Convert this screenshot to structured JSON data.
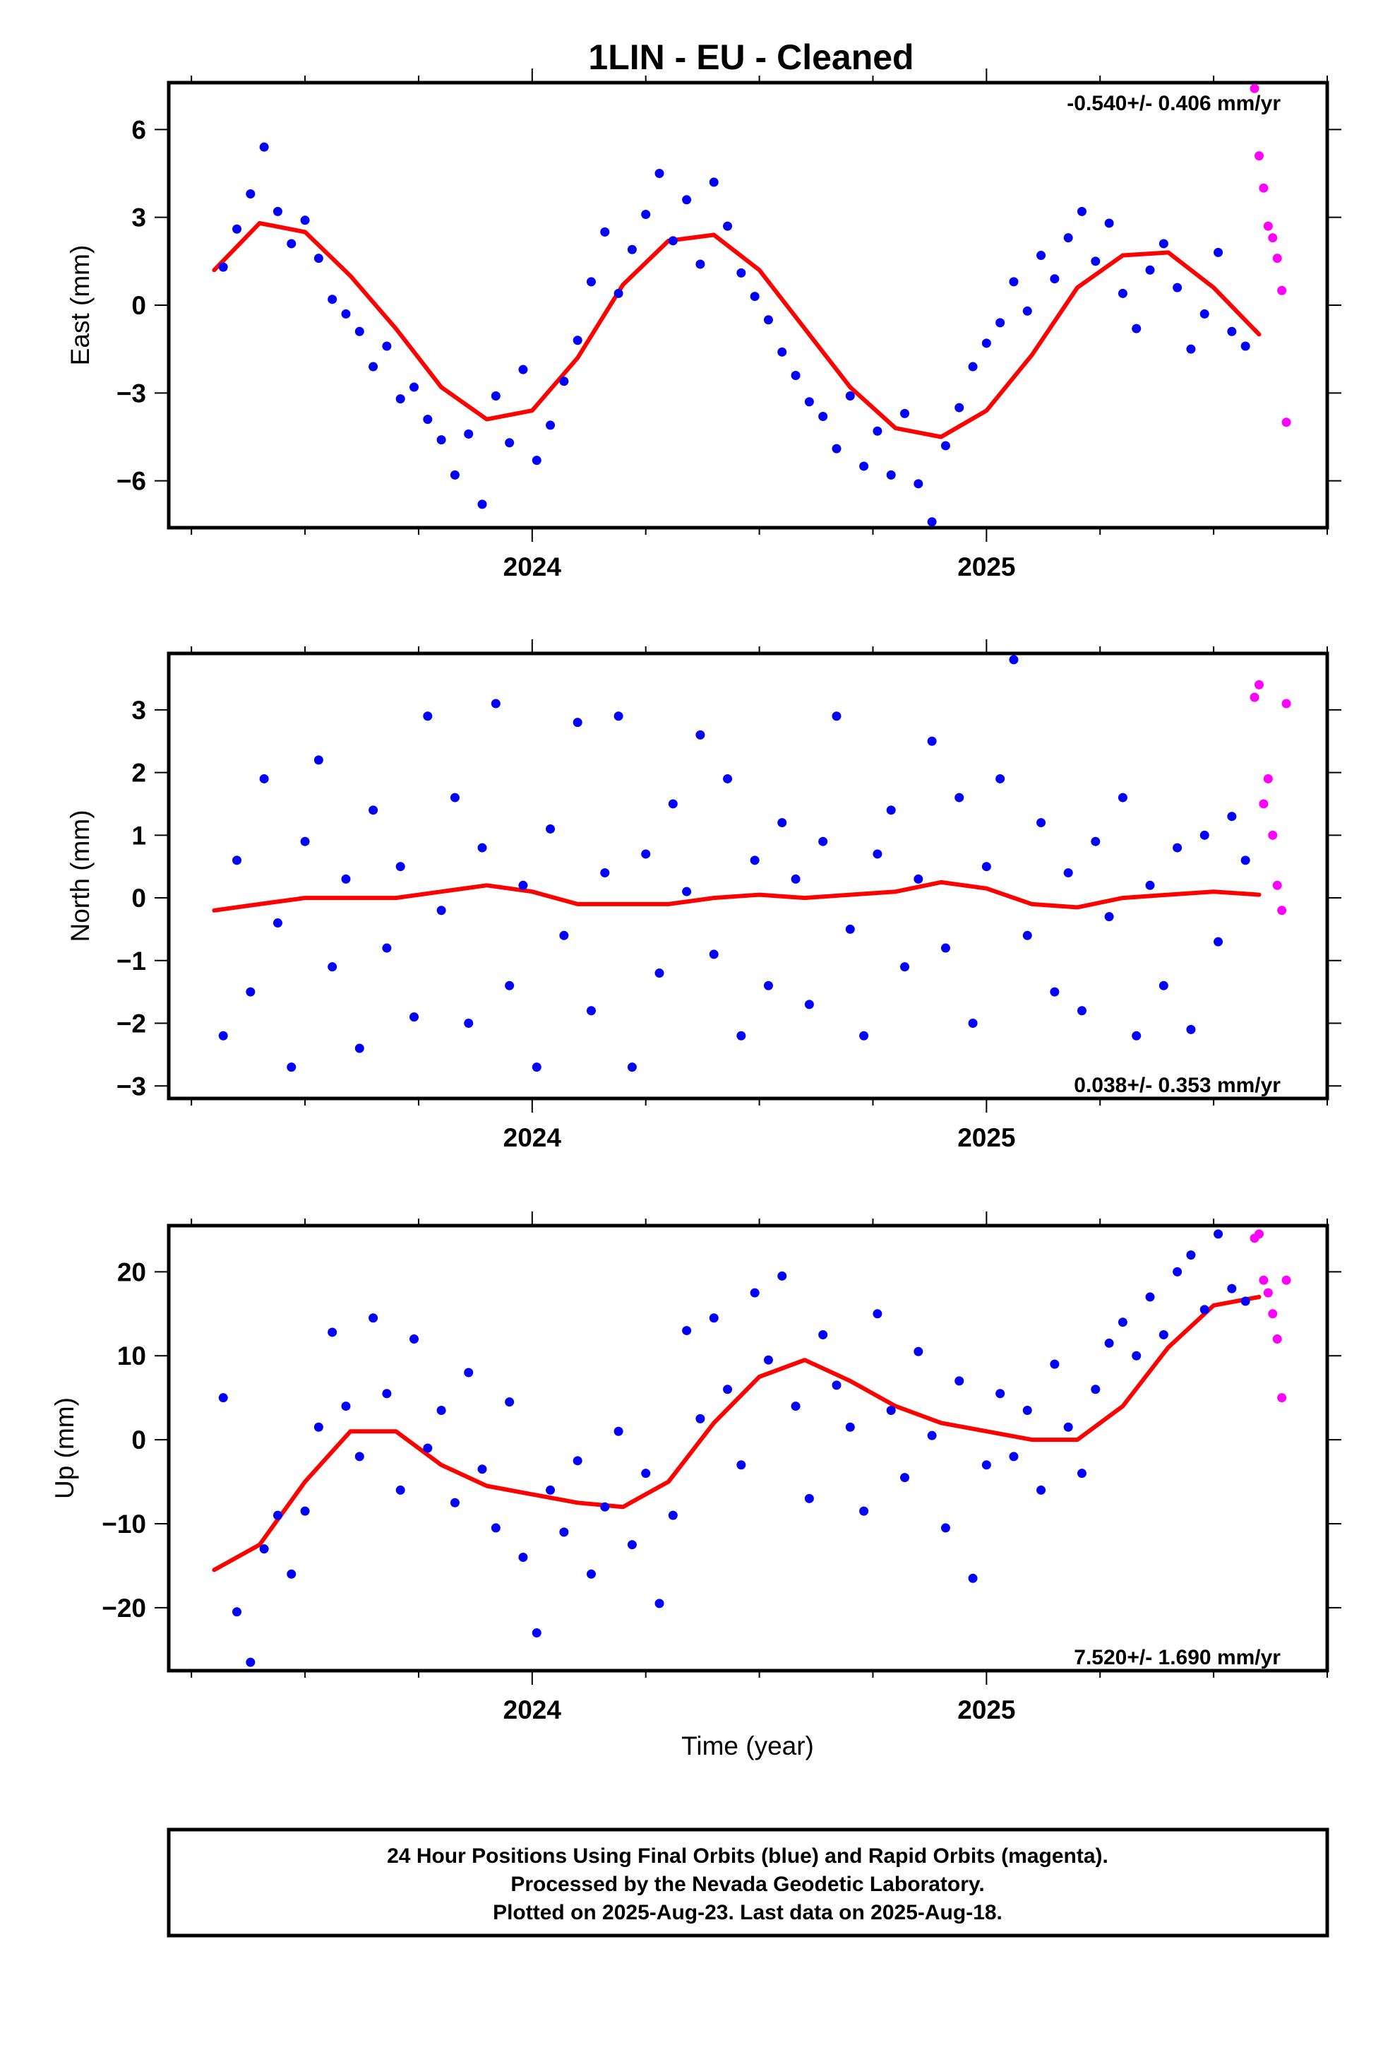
{
  "title": "1LIN  - EU - Cleaned",
  "x_axis_label": "Time (year)",
  "footer": {
    "line1": "24 Hour Positions Using Final Orbits (blue) and Rapid Orbits (magenta).",
    "line2": "Processed by the Nevada Geodetic Laboratory.",
    "line3": "Plotted on 2025-Aug-23. Last data on 2025-Aug-18."
  },
  "colors": {
    "final_orbits": "#0000ff",
    "rapid_orbits": "#ff00ff",
    "model_fit": "#ff0000"
  },
  "chart_data": [
    {
      "type": "scatter",
      "component": "east",
      "ylabel": "East (mm)",
      "rate_label": "-0.540+/- 0.406 mm/yr",
      "xlim": [
        2023.2,
        2025.75
      ],
      "ylim": [
        -7.6,
        7.6
      ],
      "xticks": [
        2024,
        2025
      ],
      "yticks": [
        6,
        3,
        0,
        -3,
        -6
      ],
      "ytick_labels": [
        "6",
        "3",
        "0",
        "−3",
        "−6"
      ],
      "fit": {
        "x": [
          2023.3,
          2023.4,
          2023.5,
          2023.6,
          2023.7,
          2023.8,
          2023.9,
          2024.0,
          2024.1,
          2024.2,
          2024.3,
          2024.4,
          2024.5,
          2024.6,
          2024.7,
          2024.8,
          2024.9,
          2025.0,
          2025.1,
          2025.2,
          2025.3,
          2025.4,
          2025.5,
          2025.6
        ],
        "y": [
          1.2,
          2.8,
          2.5,
          1.0,
          -0.8,
          -2.8,
          -3.9,
          -3.6,
          -1.8,
          0.7,
          2.2,
          2.4,
          1.2,
          -0.8,
          -2.8,
          -4.2,
          -4.5,
          -3.6,
          -1.7,
          0.6,
          1.7,
          1.8,
          0.6,
          -1.0
        ]
      },
      "series": [
        {
          "color": "#0000ff",
          "x": [
            2023.32,
            2023.35,
            2023.38,
            2023.41,
            2023.44,
            2023.47,
            2023.5,
            2023.53,
            2023.56,
            2023.59,
            2023.62,
            2023.65,
            2023.68,
            2023.71,
            2023.74,
            2023.77,
            2023.8,
            2023.83,
            2023.86,
            2023.89,
            2023.92,
            2023.95,
            2023.98,
            2024.01,
            2024.04,
            2024.07,
            2024.1,
            2024.13,
            2024.16,
            2024.19,
            2024.22,
            2024.25,
            2024.28,
            2024.31,
            2024.34,
            2024.37,
            2024.4,
            2024.43,
            2024.46,
            2024.49,
            2024.52,
            2024.55,
            2024.58,
            2024.61,
            2024.64,
            2024.67,
            2024.7,
            2024.73,
            2024.76,
            2024.79,
            2024.82,
            2024.85,
            2024.88,
            2024.91,
            2024.94,
            2024.97,
            2025.0,
            2025.03,
            2025.06,
            2025.09,
            2025.12,
            2025.15,
            2025.18,
            2025.21,
            2025.24,
            2025.27,
            2025.3,
            2025.33,
            2025.36,
            2025.39,
            2025.42,
            2025.45,
            2025.48,
            2025.51,
            2025.54,
            2025.57
          ],
          "y": [
            1.3,
            2.6,
            3.8,
            5.4,
            3.2,
            2.1,
            2.9,
            1.6,
            0.2,
            -0.3,
            -0.9,
            -2.1,
            -1.4,
            -3.2,
            -2.8,
            -3.9,
            -4.6,
            -5.8,
            -4.4,
            -6.8,
            -3.1,
            -4.7,
            -2.2,
            -5.3,
            -4.1,
            -2.6,
            -1.2,
            0.8,
            2.5,
            0.4,
            1.9,
            3.1,
            4.5,
            2.2,
            3.6,
            1.4,
            4.2,
            2.7,
            1.1,
            0.3,
            -0.5,
            -1.6,
            -2.4,
            -3.3,
            -3.8,
            -4.9,
            -3.1,
            -5.5,
            -4.3,
            -5.8,
            -3.7,
            -6.1,
            -7.4,
            -4.8,
            -3.5,
            -2.1,
            -1.3,
            -0.6,
            0.8,
            -0.2,
            1.7,
            0.9,
            2.3,
            3.2,
            1.5,
            2.8,
            0.4,
            -0.8,
            1.2,
            2.1,
            0.6,
            -1.5,
            -0.3,
            1.8,
            -0.9,
            -1.4
          ]
        },
        {
          "color": "#ff00ff",
          "x": [
            2025.59,
            2025.6,
            2025.61,
            2025.62,
            2025.63,
            2025.64,
            2025.65,
            2025.66
          ],
          "y": [
            7.4,
            5.1,
            4.0,
            2.7,
            2.3,
            1.6,
            0.5,
            -4.0
          ]
        }
      ]
    },
    {
      "type": "scatter",
      "component": "north",
      "ylabel": "North (mm)",
      "rate_label": "0.038+/- 0.353 mm/yr",
      "xlim": [
        2023.2,
        2025.75
      ],
      "ylim": [
        -3.2,
        3.9
      ],
      "xticks": [
        2024,
        2025
      ],
      "yticks": [
        3,
        2,
        1,
        0,
        -1,
        -2,
        -3
      ],
      "ytick_labels": [
        "3",
        "2",
        "1",
        "0",
        "−1",
        "−2",
        "−3"
      ],
      "fit": {
        "x": [
          2023.3,
          2023.4,
          2023.5,
          2023.6,
          2023.7,
          2023.8,
          2023.9,
          2024.0,
          2024.1,
          2024.2,
          2024.3,
          2024.4,
          2024.5,
          2024.6,
          2024.7,
          2024.8,
          2024.9,
          2025.0,
          2025.1,
          2025.2,
          2025.3,
          2025.4,
          2025.5,
          2025.6
        ],
        "y": [
          -0.2,
          -0.1,
          0.0,
          0.0,
          0.0,
          0.1,
          0.2,
          0.1,
          -0.1,
          -0.1,
          -0.1,
          0.0,
          0.05,
          0.0,
          0.05,
          0.1,
          0.25,
          0.15,
          -0.1,
          -0.15,
          0.0,
          0.05,
          0.1,
          0.05
        ]
      },
      "series": [
        {
          "color": "#0000ff",
          "x": [
            2023.32,
            2023.35,
            2023.38,
            2023.41,
            2023.44,
            2023.47,
            2023.5,
            2023.53,
            2023.56,
            2023.59,
            2023.62,
            2023.65,
            2023.68,
            2023.71,
            2023.74,
            2023.77,
            2023.8,
            2023.83,
            2023.86,
            2023.89,
            2023.92,
            2023.95,
            2023.98,
            2024.01,
            2024.04,
            2024.07,
            2024.1,
            2024.13,
            2024.16,
            2024.19,
            2024.22,
            2024.25,
            2024.28,
            2024.31,
            2024.34,
            2024.37,
            2024.4,
            2024.43,
            2024.46,
            2024.49,
            2024.52,
            2024.55,
            2024.58,
            2024.61,
            2024.64,
            2024.67,
            2024.7,
            2024.73,
            2024.76,
            2024.79,
            2024.82,
            2024.85,
            2024.88,
            2024.91,
            2024.94,
            2024.97,
            2025.0,
            2025.03,
            2025.06,
            2025.09,
            2025.12,
            2025.15,
            2025.18,
            2025.21,
            2025.24,
            2025.27,
            2025.3,
            2025.33,
            2025.36,
            2025.39,
            2025.42,
            2025.45,
            2025.48,
            2025.51,
            2025.54,
            2025.57
          ],
          "y": [
            -2.2,
            0.6,
            -1.5,
            1.9,
            -0.4,
            -2.7,
            0.9,
            2.2,
            -1.1,
            0.3,
            -2.4,
            1.4,
            -0.8,
            0.5,
            -1.9,
            2.9,
            -0.2,
            1.6,
            -2.0,
            0.8,
            3.1,
            -1.4,
            0.2,
            -2.7,
            1.1,
            -0.6,
            2.8,
            -1.8,
            0.4,
            2.9,
            -2.7,
            0.7,
            -1.2,
            1.5,
            0.1,
            2.6,
            -0.9,
            1.9,
            -2.2,
            0.6,
            -1.4,
            1.2,
            0.3,
            -1.7,
            0.9,
            2.9,
            -0.5,
            -2.2,
            0.7,
            1.4,
            -1.1,
            0.3,
            2.5,
            -0.8,
            1.6,
            -2.0,
            0.5,
            1.9,
            3.8,
            -0.6,
            1.2,
            -1.5,
            0.4,
            -1.8,
            0.9,
            -0.3,
            1.6,
            -2.2,
            0.2,
            -1.4,
            0.8,
            -2.1,
            1.0,
            -0.7,
            1.3,
            0.6
          ]
        },
        {
          "color": "#ff00ff",
          "x": [
            2025.59,
            2025.6,
            2025.61,
            2025.62,
            2025.63,
            2025.64,
            2025.65,
            2025.66
          ],
          "y": [
            3.2,
            3.4,
            1.5,
            1.9,
            1.0,
            0.2,
            -0.2,
            3.1
          ]
        }
      ]
    },
    {
      "type": "scatter",
      "component": "up",
      "ylabel": "Up (mm)",
      "rate_label": "7.520+/- 1.690 mm/yr",
      "xlim": [
        2023.2,
        2025.75
      ],
      "ylim": [
        -27.5,
        25.5
      ],
      "xticks": [
        2024,
        2025
      ],
      "yticks": [
        20,
        10,
        0,
        -10,
        -20
      ],
      "ytick_labels": [
        "20",
        "10",
        "0",
        "−10",
        "−20"
      ],
      "fit": {
        "x": [
          2023.3,
          2023.4,
          2023.5,
          2023.6,
          2023.7,
          2023.8,
          2023.9,
          2024.0,
          2024.1,
          2024.2,
          2024.3,
          2024.4,
          2024.5,
          2024.6,
          2024.7,
          2024.8,
          2024.9,
          2025.0,
          2025.1,
          2025.2,
          2025.3,
          2025.4,
          2025.5,
          2025.6
        ],
        "y": [
          -15.5,
          -12.5,
          -5.0,
          1.0,
          1.0,
          -3.0,
          -5.5,
          -6.5,
          -7.5,
          -8.0,
          -5.0,
          2.0,
          7.5,
          9.5,
          7.0,
          4.0,
          2.0,
          1.0,
          0.0,
          0.0,
          4.0,
          11.0,
          16.0,
          17.0
        ]
      },
      "series": [
        {
          "color": "#0000ff",
          "x": [
            2023.32,
            2023.35,
            2023.38,
            2023.41,
            2023.44,
            2023.47,
            2023.5,
            2023.53,
            2023.56,
            2023.59,
            2023.62,
            2023.65,
            2023.68,
            2023.71,
            2023.74,
            2023.77,
            2023.8,
            2023.83,
            2023.86,
            2023.89,
            2023.92,
            2023.95,
            2023.98,
            2024.01,
            2024.04,
            2024.07,
            2024.1,
            2024.13,
            2024.16,
            2024.19,
            2024.22,
            2024.25,
            2024.28,
            2024.31,
            2024.34,
            2024.37,
            2024.4,
            2024.43,
            2024.46,
            2024.49,
            2024.52,
            2024.55,
            2024.58,
            2024.61,
            2024.64,
            2024.67,
            2024.7,
            2024.73,
            2024.76,
            2024.79,
            2024.82,
            2024.85,
            2024.88,
            2024.91,
            2024.94,
            2024.97,
            2025.0,
            2025.03,
            2025.06,
            2025.09,
            2025.12,
            2025.15,
            2025.18,
            2025.21,
            2025.24,
            2025.27,
            2025.3,
            2025.33,
            2025.36,
            2025.39,
            2025.42,
            2025.45,
            2025.48,
            2025.51,
            2025.54,
            2025.57
          ],
          "y": [
            5.0,
            -20.5,
            -26.5,
            -13.0,
            -9.0,
            -16.0,
            -8.5,
            1.5,
            12.8,
            4.0,
            -2.0,
            14.5,
            5.5,
            -6.0,
            12.0,
            -1.0,
            3.5,
            -7.5,
            8.0,
            -3.5,
            -10.5,
            4.5,
            -14.0,
            -23.0,
            -6.0,
            -11.0,
            -2.5,
            -16.0,
            -8.0,
            1.0,
            -12.5,
            -4.0,
            -19.5,
            -9.0,
            13.0,
            2.5,
            14.5,
            6.0,
            -3.0,
            17.5,
            9.5,
            19.5,
            4.0,
            -7.0,
            12.5,
            6.5,
            1.5,
            -8.5,
            15.0,
            3.5,
            -4.5,
            10.5,
            0.5,
            -10.5,
            7.0,
            -16.5,
            -3.0,
            5.5,
            -2.0,
            3.5,
            -6.0,
            9.0,
            1.5,
            -4.0,
            6.0,
            11.5,
            14.0,
            10.0,
            17.0,
            12.5,
            20.0,
            22.0,
            15.5,
            24.5,
            18.0,
            16.5
          ]
        },
        {
          "color": "#ff00ff",
          "x": [
            2025.59,
            2025.6,
            2025.61,
            2025.62,
            2025.63,
            2025.64,
            2025.65,
            2025.66
          ],
          "y": [
            24.0,
            24.5,
            19.0,
            17.5,
            15.0,
            12.0,
            5.0,
            19.0
          ]
        }
      ]
    }
  ]
}
